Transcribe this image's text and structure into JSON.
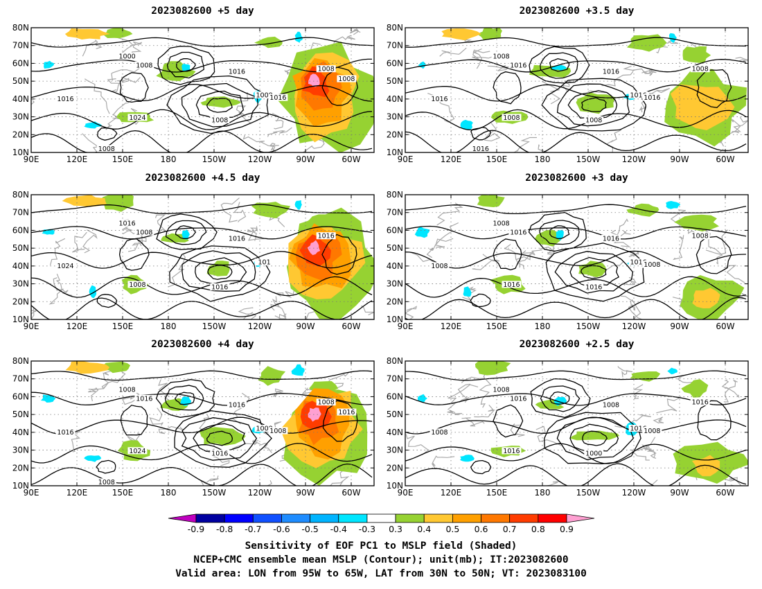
{
  "panels": [
    {
      "title": "2023082600  +5 day",
      "contour_labels": [
        "1000",
        "1008",
        "1016",
        "1008",
        "1016",
        "1024",
        "1008",
        "1008",
        "1016",
        "1008",
        "1008"
      ],
      "shade": "strong"
    },
    {
      "title": "2023082600  +3.5 day",
      "contour_labels": [
        "1008",
        "1016",
        "1016",
        "1008",
        "1016",
        "1008",
        "1008",
        "1016",
        "1016",
        "1016"
      ],
      "shade": "medium"
    },
    {
      "title": "2023082600  +4.5 day",
      "contour_labels": [
        "1016",
        "1008",
        "1016",
        "1016",
        "1024",
        "1008",
        "1016",
        "101"
      ],
      "shade": "strong"
    },
    {
      "title": "2023082600  +3 day",
      "contour_labels": [
        "1008",
        "1016",
        "1016",
        "1008",
        "1008",
        "1016",
        "1016",
        "1016",
        "1008"
      ],
      "shade": "weak"
    },
    {
      "title": "2023082600  +4 day",
      "contour_labels": [
        "1008",
        "1016",
        "1016",
        "1008",
        "1016",
        "1024",
        "1016",
        "1008",
        "1008",
        "1008",
        "1016"
      ],
      "shade": "strong"
    },
    {
      "title": "2023082600  +2.5 day",
      "contour_labels": [
        "1008",
        "1016",
        "1008",
        "1016",
        "1008",
        "1016",
        "1000",
        "1016",
        "1008"
      ],
      "shade": "weak"
    }
  ],
  "map": {
    "lon_labels": [
      "90E",
      "120E",
      "150E",
      "180",
      "150W",
      "120W",
      "90W",
      "60W"
    ],
    "lat_labels": [
      "10N",
      "20N",
      "30N",
      "40N",
      "50N",
      "60N",
      "70N",
      "80N"
    ],
    "lon_range": [
      90,
      315
    ],
    "lat_range": [
      10,
      80
    ]
  },
  "colorbar": {
    "labels": [
      "-0.9",
      "-0.8",
      "-0.7",
      "-0.6",
      "-0.5",
      "-0.4",
      "-0.3",
      "0.3",
      "0.4",
      "0.5",
      "0.6",
      "0.7",
      "0.8",
      "0.9"
    ],
    "colors": [
      "#c000c0",
      "#0000a0",
      "#0000ff",
      "#1050ff",
      "#1e8cff",
      "#00b4ff",
      "#00e6ff",
      "#ffffff",
      "#96d232",
      "#ffc832",
      "#ffa000",
      "#ff7800",
      "#ff3c00",
      "#ff0000",
      "#ffa0d2"
    ]
  },
  "caption": {
    "line1": "Sensitivity of EOF PC1 to MSLP field (Shaded)",
    "line2": "NCEP+CMC ensemble mean MSLP (Contour); unit(mb); IT:2023082600",
    "line3": "Valid area: LON from 95W to 65W, LAT from 30N to 50N; VT: 2023083100"
  }
}
